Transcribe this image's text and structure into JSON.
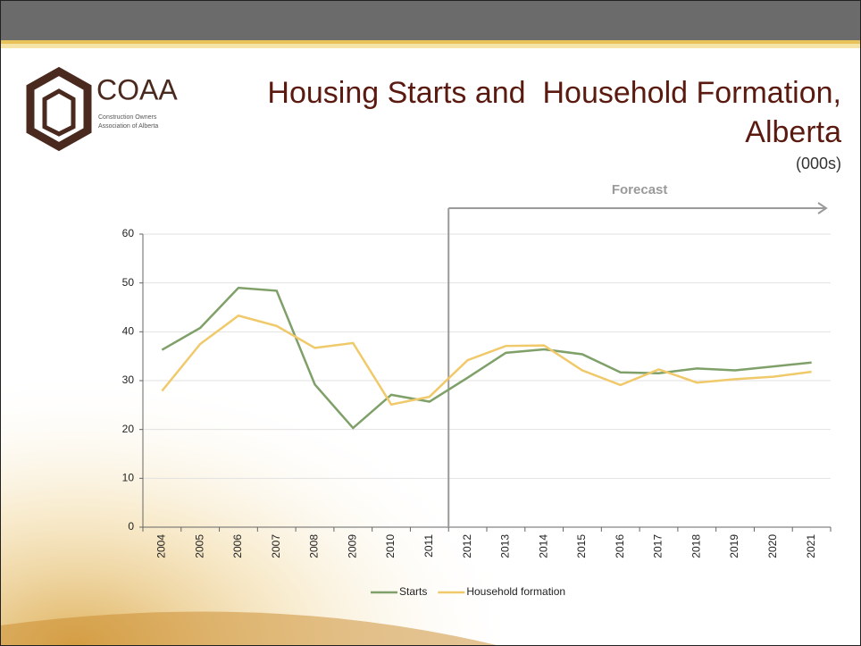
{
  "logo": {
    "name": "COAA",
    "tagline": [
      "Construction Owners",
      "Association of Alberta"
    ]
  },
  "chart_data": {
    "type": "line",
    "title": "Housing Starts and  Household Formation, Alberta",
    "subtitle": "(000s)",
    "annotation": "Forecast",
    "categories": [
      "2004",
      "2005",
      "2006",
      "2007",
      "2008",
      "2009",
      "2010",
      "2011",
      "2012",
      "2013",
      "2014",
      "2015",
      "2016",
      "2017",
      "2018",
      "2019",
      "2020",
      "2021"
    ],
    "forecast_start": "2012",
    "series": [
      {
        "name": "Starts",
        "color": "#7fa069",
        "values": [
          36.3,
          40.8,
          49,
          48.4,
          29.2,
          20.3,
          27.1,
          25.7,
          30.6,
          35.7,
          36.4,
          35.4,
          31.7,
          31.5,
          32.5,
          32.1,
          32.9,
          33.7
        ]
      },
      {
        "name": "Household formation",
        "color": "#f0c96a",
        "values": [
          27.9,
          37.5,
          43.3,
          41.2,
          36.7,
          37.7,
          25.1,
          26.7,
          34.2,
          37.1,
          37.2,
          32.1,
          29.1,
          32.3,
          29.6,
          30.3,
          30.8,
          31.8
        ]
      }
    ],
    "ylim": [
      0,
      60
    ],
    "yticks": [
      0,
      10,
      20,
      30,
      40,
      50,
      60
    ],
    "grid": true,
    "legend": "bottom"
  }
}
